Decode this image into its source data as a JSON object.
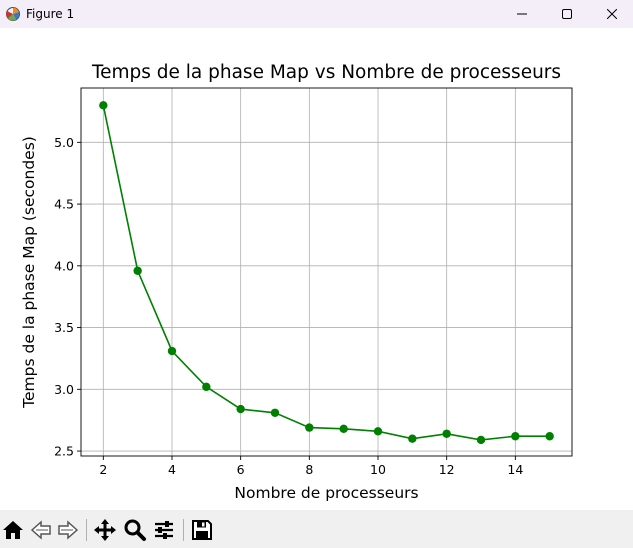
{
  "window": {
    "title": "Figure 1"
  },
  "icons": {
    "app": "matplotlib-logo-icon",
    "minimize": "minimize-icon",
    "maximize": "maximize-icon",
    "close": "close-icon",
    "home": "home-icon",
    "back": "back-arrow-icon",
    "forward": "forward-arrow-icon",
    "pan": "pan-move-icon",
    "zoom": "zoom-magnifier-icon",
    "subplots": "configure-subplots-icon",
    "save": "save-floppy-icon"
  },
  "chart_data": {
    "type": "line",
    "title": "Temps de la phase Map vs Nombre de processeurs",
    "xlabel": "Nombre de processeurs",
    "ylabel": "Temps de la phase Map (secondes)",
    "x": [
      2,
      3,
      4,
      5,
      6,
      7,
      8,
      9,
      10,
      11,
      12,
      13,
      14,
      15
    ],
    "series": [
      {
        "values": [
          5.3,
          3.96,
          3.31,
          3.02,
          2.84,
          2.81,
          2.69,
          2.68,
          2.66,
          2.6,
          2.64,
          2.59,
          2.62,
          2.62
        ],
        "color": "#008000",
        "marker": "circle"
      }
    ],
    "xlim": [
      1.35,
      15.65
    ],
    "ylim": [
      2.46,
      5.44
    ],
    "xticks": [
      2,
      4,
      6,
      8,
      10,
      12,
      14
    ],
    "yticks": [
      2.5,
      3.0,
      3.5,
      4.0,
      4.5,
      5.0
    ],
    "ytick_labels": [
      "2.5",
      "3.0",
      "3.5",
      "4.0",
      "4.5",
      "5.0"
    ],
    "grid": true,
    "legend": "none"
  }
}
